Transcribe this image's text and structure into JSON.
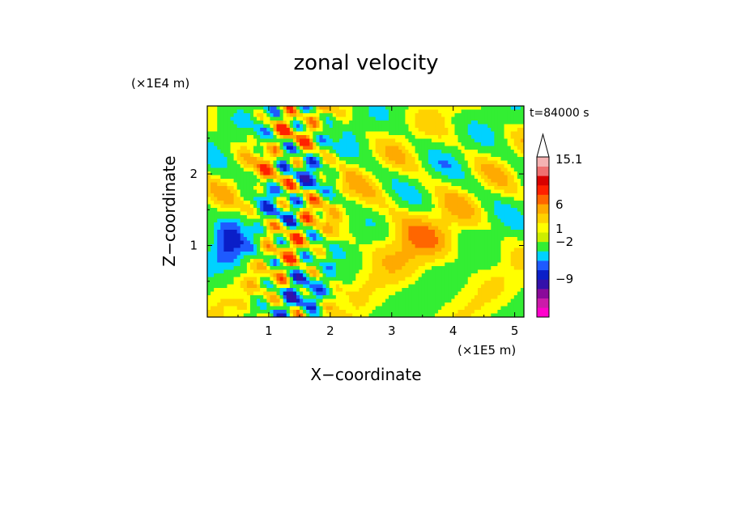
{
  "chart_data": {
    "type": "heatmap",
    "title": "zonal velocity",
    "xlabel": "X−coordinate",
    "ylabel": "Z−coordinate",
    "x_unit": "(×1E5 m)",
    "y_unit": "(×1E4 m)",
    "time_label": "t=84000 s",
    "xlim": [
      0,
      5.15
    ],
    "ylim": [
      0,
      2.95
    ],
    "x_ticks": [
      "1",
      "2",
      "3",
      "4",
      "5"
    ],
    "y_ticks": [
      "1",
      "2"
    ],
    "colorbar": {
      "levels": [
        {
          "color": "#ff00cc"
        },
        {
          "color": "#cc1aaa"
        },
        {
          "color": "#8a0a9a"
        },
        {
          "color": "#3311aa"
        },
        {
          "color": "#0a1ec8"
        },
        {
          "color": "#1e5aff"
        },
        {
          "color": "#00d2ff"
        },
        {
          "color": "#33ee33"
        },
        {
          "color": "#ccee00"
        },
        {
          "color": "#ffff00"
        },
        {
          "color": "#ffd200"
        },
        {
          "color": "#ffaa00"
        },
        {
          "color": "#ff6600"
        },
        {
          "color": "#ff2000"
        },
        {
          "color": "#d90000"
        },
        {
          "color": "#ef7070"
        },
        {
          "color": "#f5b2b2"
        }
      ],
      "tick_labels": [
        "15.1",
        "6",
        "1",
        "−2",
        "−9"
      ]
    }
  }
}
